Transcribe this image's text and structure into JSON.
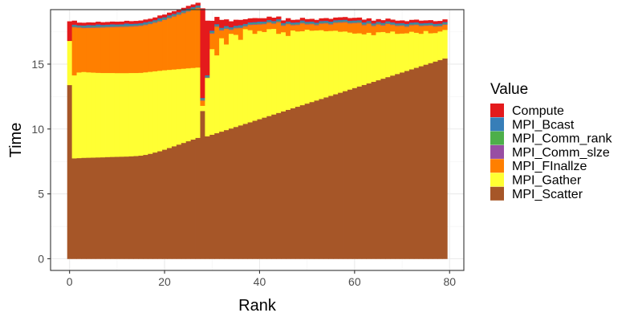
{
  "chart_data": {
    "type": "bar",
    "stacked": true,
    "xlabel": "Rank",
    "ylabel": "Time",
    "x_ticks": [
      0,
      20,
      40,
      60,
      80
    ],
    "y_ticks": [
      0,
      5,
      10,
      15
    ],
    "xlim": [
      -4,
      83
    ],
    "ylim": [
      -0.9,
      19.2
    ],
    "grid": true,
    "legend_title": "Value",
    "legend_position": "right",
    "series_order": [
      "Compute",
      "MPI_Bcast",
      "MPI_Comm_rank",
      "MPI_Comm_slze",
      "MPI_FInallze",
      "MPI_Gather",
      "MPI_Scatter"
    ],
    "colors": {
      "Compute": "#e41a1c",
      "MPI_Bcast": "#377eb8",
      "MPI_Comm_rank": "#4daf4a",
      "MPI_Comm_slze": "#984ea3",
      "MPI_FInallze": "#ff7f00",
      "MPI_Gather": "#ffff33",
      "MPI_Scatter": "#a65628"
    },
    "ranks": [
      0,
      1,
      2,
      3,
      4,
      5,
      6,
      7,
      8,
      9,
      10,
      11,
      12,
      13,
      14,
      15,
      16,
      17,
      18,
      19,
      20,
      21,
      22,
      23,
      24,
      25,
      26,
      27,
      28,
      29,
      30,
      31,
      32,
      33,
      34,
      35,
      36,
      37,
      38,
      39,
      40,
      41,
      42,
      43,
      44,
      45,
      46,
      47,
      48,
      49,
      50,
      51,
      52,
      53,
      54,
      55,
      56,
      57,
      58,
      59,
      60,
      61,
      62,
      63,
      64,
      65,
      66,
      67,
      68,
      69,
      70,
      71,
      72,
      73,
      74,
      75,
      76,
      77,
      78,
      79
    ],
    "series": [
      {
        "name": "MPI_Scatter",
        "values": [
          13.4,
          7.75,
          7.77,
          7.79,
          7.8,
          7.81,
          7.82,
          7.83,
          7.85,
          7.86,
          7.87,
          7.88,
          7.89,
          7.91,
          7.93,
          7.96,
          8.02,
          8.1,
          8.2,
          8.3,
          8.42,
          8.55,
          8.68,
          8.81,
          8.94,
          9.07,
          9.2,
          9.33,
          11.4,
          9.45,
          9.57,
          9.69,
          9.81,
          9.93,
          10.05,
          10.17,
          10.29,
          10.41,
          10.53,
          10.65,
          10.77,
          10.89,
          11.01,
          11.13,
          11.25,
          11.37,
          11.49,
          11.61,
          11.73,
          11.85,
          11.97,
          12.09,
          12.21,
          12.33,
          12.45,
          12.57,
          12.69,
          12.81,
          12.93,
          13.05,
          13.17,
          13.29,
          13.41,
          13.53,
          13.65,
          13.77,
          13.89,
          14.01,
          14.13,
          14.25,
          14.37,
          14.49,
          14.61,
          14.73,
          14.85,
          14.97,
          15.09,
          15.21,
          15.33,
          15.45
        ]
      },
      {
        "name": "MPI_Gather",
        "values": [
          3.4,
          6.4,
          6.6,
          6.62,
          6.58,
          6.55,
          6.52,
          6.5,
          6.48,
          6.47,
          6.45,
          6.44,
          6.43,
          6.42,
          6.4,
          6.38,
          6.36,
          6.32,
          6.26,
          6.2,
          6.12,
          6.02,
          5.92,
          5.82,
          5.72,
          5.62,
          5.52,
          5.42,
          0.4,
          4.5,
          6.6,
          6.0,
          7.2,
          6.6,
          7.3,
          7.1,
          6.6,
          7.3,
          7.1,
          6.7,
          6.8,
          6.6,
          6.7,
          6.6,
          6.1,
          6.1,
          5.7,
          6.0,
          5.8,
          5.7,
          5.7,
          5.5,
          5.4,
          5.3,
          5.1,
          5.0,
          4.9,
          4.7,
          4.6,
          4.4,
          4.2,
          4.1,
          3.9,
          3.9,
          3.6,
          3.7,
          3.6,
          3.4,
          3.4,
          3.1,
          3.0,
          2.9,
          2.9,
          2.7,
          2.5,
          2.6,
          2.3,
          2.2,
          2.2,
          2.2
        ]
      },
      {
        "name": "MPI_FInallze",
        "values": [
          0.0,
          3.7,
          3.45,
          3.38,
          3.42,
          3.45,
          3.48,
          3.5,
          3.52,
          3.53,
          3.55,
          3.56,
          3.57,
          3.58,
          3.6,
          3.62,
          3.64,
          3.68,
          3.74,
          3.8,
          3.88,
          3.98,
          4.08,
          4.18,
          4.28,
          4.38,
          4.48,
          4.58,
          0.4,
          0.0,
          1.2,
          2.2,
          0.6,
          1.2,
          0.3,
          0.5,
          0.9,
          0.2,
          0.4,
          0.7,
          0.5,
          0.6,
          0.5,
          0.4,
          0.9,
          0.5,
          0.9,
          0.4,
          0.5,
          0.6,
          0.4,
          0.5,
          0.4,
          0.5,
          0.6,
          0.5,
          0.6,
          0.7,
          0.7,
          0.7,
          0.8,
          0.8,
          0.7,
          0.7,
          0.7,
          0.6,
          0.5,
          0.7,
          0.5,
          0.6,
          0.6,
          0.5,
          0.5,
          0.6,
          0.6,
          0.4,
          0.6,
          0.5,
          0.4,
          0.4
        ]
      },
      {
        "name": "MPI_Gather",
        "values": []
      },
      {
        "name": "MPI_Comm_slze",
        "values": [
          0.0,
          0.05,
          0.05,
          0.05,
          0.05,
          0.05,
          0.05,
          0.05,
          0.05,
          0.05,
          0.05,
          0.05,
          0.05,
          0.05,
          0.05,
          0.05,
          0.05,
          0.05,
          0.05,
          0.05,
          0.05,
          0.05,
          0.05,
          0.05,
          0.05,
          0.05,
          0.05,
          0.05,
          0.05,
          0.05,
          0.05,
          0.05,
          0.05,
          0.05,
          0.05,
          0.05,
          0.05,
          0.05,
          0.05,
          0.05,
          0.05,
          0.05,
          0.05,
          0.05,
          0.05,
          0.05,
          0.05,
          0.05,
          0.05,
          0.05,
          0.05,
          0.05,
          0.05,
          0.05,
          0.05,
          0.05,
          0.05,
          0.05,
          0.05,
          0.05,
          0.05,
          0.05,
          0.05,
          0.05,
          0.05,
          0.05,
          0.05,
          0.05,
          0.05,
          0.05,
          0.05,
          0.05,
          0.05,
          0.05,
          0.05,
          0.05,
          0.05,
          0.05,
          0.05,
          0.05
        ]
      },
      {
        "name": "MPI_Comm_rank",
        "values": [
          0.0,
          0.05,
          0.05,
          0.05,
          0.05,
          0.05,
          0.05,
          0.05,
          0.05,
          0.05,
          0.05,
          0.05,
          0.05,
          0.05,
          0.05,
          0.05,
          0.05,
          0.05,
          0.05,
          0.05,
          0.05,
          0.05,
          0.05,
          0.05,
          0.05,
          0.05,
          0.05,
          0.05,
          0.05,
          0.05,
          0.05,
          0.05,
          0.05,
          0.05,
          0.05,
          0.05,
          0.05,
          0.05,
          0.05,
          0.05,
          0.05,
          0.05,
          0.05,
          0.05,
          0.05,
          0.05,
          0.05,
          0.05,
          0.05,
          0.05,
          0.05,
          0.05,
          0.05,
          0.05,
          0.05,
          0.05,
          0.05,
          0.05,
          0.05,
          0.05,
          0.05,
          0.05,
          0.05,
          0.05,
          0.05,
          0.05,
          0.05,
          0.05,
          0.05,
          0.05,
          0.05,
          0.05,
          0.05,
          0.05,
          0.05,
          0.05,
          0.05,
          0.05,
          0.05,
          0.05
        ]
      },
      {
        "name": "MPI_Bcast",
        "values": [
          0.0,
          0.1,
          0.08,
          0.1,
          0.12,
          0.1,
          0.15,
          0.1,
          0.1,
          0.12,
          0.1,
          0.1,
          0.15,
          0.1,
          0.1,
          0.1,
          0.12,
          0.1,
          0.1,
          0.15,
          0.1,
          0.12,
          0.1,
          0.1,
          0.1,
          0.12,
          0.1,
          0.1,
          0.1,
          0.1,
          0.12,
          0.1,
          0.1,
          0.12,
          0.1,
          0.1,
          0.12,
          0.1,
          0.1,
          0.1,
          0.12,
          0.1,
          0.1,
          0.1,
          0.12,
          0.1,
          0.1,
          0.1,
          0.1,
          0.12,
          0.1,
          0.1,
          0.1,
          0.1,
          0.1,
          0.12,
          0.1,
          0.1,
          0.1,
          0.1,
          0.1,
          0.1,
          0.12,
          0.1,
          0.1,
          0.1,
          0.1,
          0.1,
          0.1,
          0.1,
          0.1,
          0.12,
          0.1,
          0.1,
          0.1,
          0.1,
          0.1,
          0.1,
          0.1,
          0.1
        ]
      },
      {
        "name": "Compute",
        "values": [
          1.5,
          0.3,
          0.2,
          0.2,
          0.2,
          0.2,
          0.2,
          0.2,
          0.2,
          0.2,
          0.2,
          0.2,
          0.2,
          0.2,
          0.2,
          0.2,
          0.2,
          0.2,
          0.2,
          0.2,
          0.2,
          0.2,
          0.2,
          0.2,
          0.2,
          0.2,
          0.2,
          0.2,
          6.9,
          4.2,
          0.75,
          0.55,
          0.6,
          0.5,
          0.45,
          0.45,
          0.4,
          0.35,
          0.3,
          0.3,
          0.25,
          0.25,
          0.25,
          0.25,
          0.2,
          0.2,
          0.25,
          0.2,
          0.2,
          0.2,
          0.2,
          0.2,
          0.2,
          0.2,
          0.2,
          0.2,
          0.2,
          0.2,
          0.2,
          0.2,
          0.2,
          0.2,
          0.2,
          0.2,
          0.2,
          0.2,
          0.2,
          0.2,
          0.2,
          0.2,
          0.2,
          0.2,
          0.2,
          0.2,
          0.2,
          0.2,
          0.2,
          0.2,
          0.2,
          0.2
        ]
      }
    ]
  }
}
